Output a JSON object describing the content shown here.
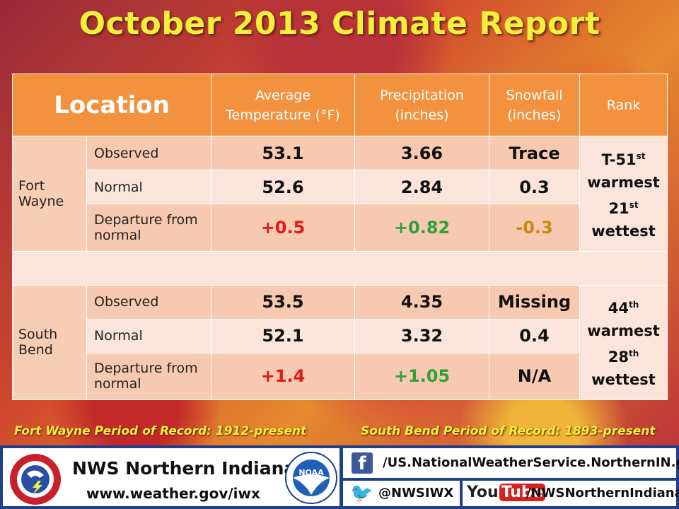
{
  "title": "October 2013 Climate Report",
  "table": {
    "headers": {
      "location": "Location",
      "avg_temp": "Average Temperature (°F)",
      "precip": "Precipitation (inches)",
      "snow": "Snowfall (inches)",
      "rank": "Rank"
    },
    "row_labels": {
      "observed": "Observed",
      "normal": "Normal",
      "departure": "Departure from normal"
    },
    "fort_wayne": {
      "name": "Fort Wayne",
      "observed": {
        "temp": "53.1",
        "precip": "3.66",
        "snow": "Trace"
      },
      "normal": {
        "temp": "52.6",
        "precip": "2.84",
        "snow": "0.3"
      },
      "departure": {
        "temp": "+0.5",
        "precip": "+0.82",
        "snow": "-0.3"
      },
      "rank": {
        "temp_rank": "T-51",
        "temp_sup": "st",
        "temp_word": "warmest",
        "precip_rank": "21",
        "precip_sup": "st",
        "precip_word": "wettest"
      }
    },
    "south_bend": {
      "name": "South Bend",
      "observed": {
        "temp": "53.5",
        "precip": "4.35",
        "snow": "Missing"
      },
      "normal": {
        "temp": "52.1",
        "precip": "3.32",
        "snow": "0.4"
      },
      "departure": {
        "temp": "+1.4",
        "precip": "+1.05",
        "snow": "N/A"
      },
      "rank": {
        "temp_rank": "44",
        "temp_sup": "th",
        "temp_word": "warmest",
        "precip_rank": "28",
        "precip_sup": "th",
        "precip_word": "wettest"
      }
    }
  },
  "period_of_record": {
    "fort_wayne": "Fort Wayne Period of Record: 1912-present",
    "south_bend": "South Bend Period of Record: 1893-present"
  },
  "footer": {
    "office_name": "NWS Northern Indiana",
    "website": "www.weather.gov/iwx",
    "facebook": "/US.NationalWeatherService.NorthernIN.gov",
    "twitter": "@NWSIWX",
    "youtube": "/NWSNorthernIndiana",
    "youtube_logo_you": "You",
    "youtube_logo_tube": "Tube",
    "noaa_label": "NOAA"
  },
  "colors": {
    "title": "#f3f03a",
    "header": "#f2923e",
    "footer_blue": "#1f3f8a",
    "positive_temp": "#e01a1a",
    "positive_precip": "#2fa03a",
    "negative_snow": "#c88a12"
  },
  "icons": [
    "nws-logo-icon",
    "noaa-logo-icon",
    "facebook-icon",
    "twitter-icon",
    "youtube-logo"
  ]
}
